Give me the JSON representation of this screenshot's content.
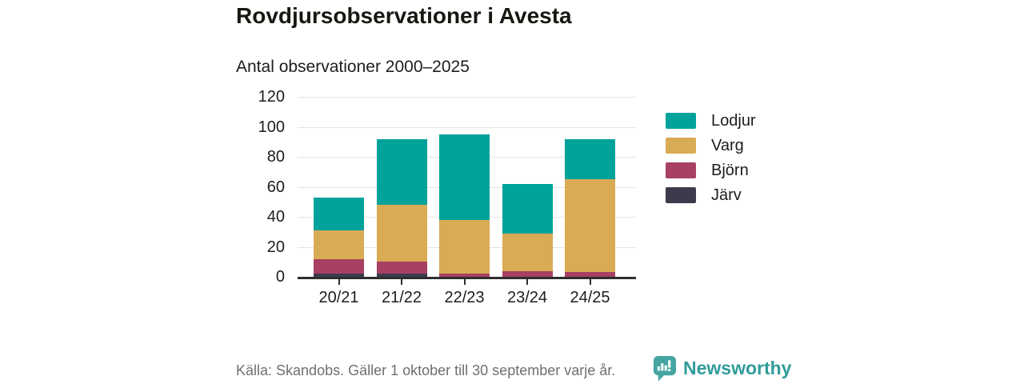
{
  "header": {
    "title": "Rovdjursobservationer i Avesta",
    "subtitle": "Antal observationer 2000–2025"
  },
  "chart_data": {
    "type": "bar",
    "stacked": true,
    "title": "Rovdjursobservationer i Avesta",
    "subtitle": "Antal observationer 2000–2025",
    "categories": [
      "20/21",
      "21/22",
      "22/23",
      "23/24",
      "24/25"
    ],
    "series": [
      {
        "name": "Lodjur",
        "color": "#00a29a",
        "values": [
          22,
          44,
          57,
          33,
          27
        ]
      },
      {
        "name": "Varg",
        "color": "#d9ab55",
        "values": [
          19,
          38,
          36,
          25,
          62
        ]
      },
      {
        "name": "Björn",
        "color": "#a84064",
        "values": [
          10,
          8,
          2,
          4,
          3
        ]
      },
      {
        "name": "Järv",
        "color": "#3b3b4c",
        "values": [
          2,
          2,
          0,
          0,
          0
        ]
      }
    ],
    "stack_order_bottom_to_top": [
      "Järv",
      "Björn",
      "Varg",
      "Lodjur"
    ],
    "totals": [
      53,
      92,
      95,
      62,
      92
    ],
    "ylim": [
      0,
      120
    ],
    "yticks": [
      0,
      20,
      40,
      60,
      80,
      100,
      120
    ],
    "grid": true,
    "legend_position": "right",
    "xlabel": "",
    "ylabel": ""
  },
  "footer": {
    "source": "Källa: Skandobs. Gäller 1 oktober till 30 september varje år.",
    "brand_name": "Newsworthy",
    "brand_color": "#2f9c99",
    "brand_icon": "bar-chart-speech-bubble-icon"
  }
}
